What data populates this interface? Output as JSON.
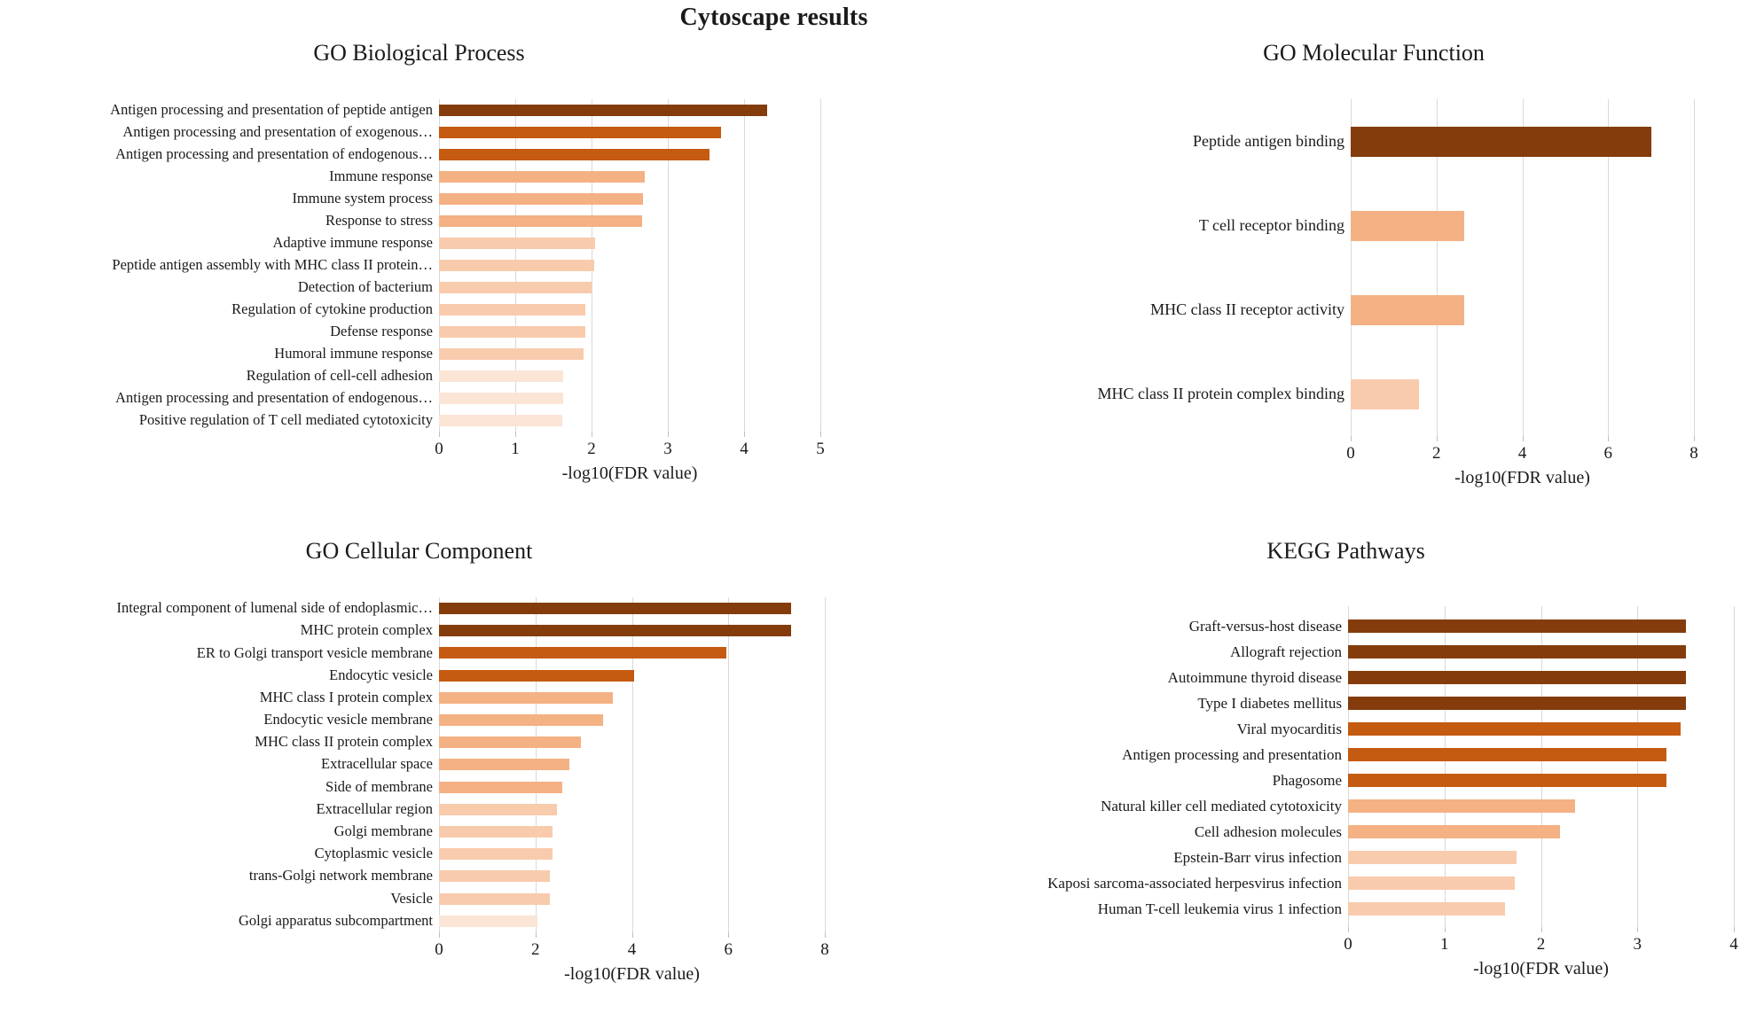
{
  "page": {
    "main_title": "Cytoscape results"
  },
  "palette": {
    "dark_brown": "#843C0C",
    "dark_orange": "#C55A11",
    "medium_orange": "#F4B183",
    "light_orange": "#F8CBAD",
    "pale_orange": "#FBE5D6",
    "gridline": "#D9D9D9",
    "text": "#1A1A1A"
  },
  "chart_data": [
    {
      "id": "go-biological-process",
      "type": "bar",
      "orientation": "horizontal",
      "title": "GO Biological Process",
      "xlabel": "-log10(FDR value)",
      "xlim": [
        0,
        5
      ],
      "xticks": [
        0,
        1,
        2,
        3,
        4,
        5
      ],
      "grid": true,
      "legend": false,
      "categories": [
        "Antigen processing and presentation of peptide antigen",
        "Antigen processing and presentation of exogenous…",
        "Antigen processing and presentation of endogenous…",
        "Immune response",
        "Immune system process",
        "Response to stress",
        "Adaptive immune response",
        "Peptide antigen assembly with MHC class II protein…",
        "Detection of bacterium",
        "Regulation of cytokine production",
        "Defense response",
        "Humoral immune response",
        "Regulation of cell-cell adhesion",
        "Antigen processing and presentation of endogenous…",
        "Positive regulation of T cell mediated cytotoxicity"
      ],
      "values": [
        4.3,
        3.7,
        3.55,
        2.7,
        2.67,
        2.66,
        2.05,
        2.03,
        2.0,
        1.92,
        1.92,
        1.9,
        1.63,
        1.63,
        1.62
      ],
      "bar_colors": [
        "#843C0C",
        "#C55A11",
        "#C55A11",
        "#F4B183",
        "#F4B183",
        "#F4B183",
        "#F8CBAD",
        "#F8CBAD",
        "#F8CBAD",
        "#F8CBAD",
        "#F8CBAD",
        "#F8CBAD",
        "#FBE5D6",
        "#FBE5D6",
        "#FBE5D6"
      ]
    },
    {
      "id": "go-molecular-function",
      "type": "bar",
      "orientation": "horizontal",
      "title": "GO Molecular Function",
      "xlabel": "-log10(FDR value)",
      "xlim": [
        0,
        8
      ],
      "xticks": [
        0,
        2,
        4,
        6,
        8
      ],
      "grid": true,
      "legend": false,
      "categories": [
        "Peptide antigen binding",
        "T cell receptor binding",
        "MHC class II receptor activity",
        "MHC class II protein complex binding"
      ],
      "values": [
        7.0,
        2.65,
        2.65,
        1.6
      ],
      "bar_colors": [
        "#843C0C",
        "#F4B183",
        "#F4B183",
        "#F8CBAD"
      ]
    },
    {
      "id": "go-cellular-component",
      "type": "bar",
      "orientation": "horizontal",
      "title": "GO Cellular Component",
      "xlabel": "-log10(FDR value)",
      "xlim": [
        0,
        8
      ],
      "xticks": [
        0,
        2,
        4,
        6,
        8
      ],
      "grid": true,
      "legend": false,
      "categories": [
        "Integral component of lumenal side of endoplasmic…",
        "MHC protein complex",
        "ER to Golgi transport vesicle membrane",
        "Endocytic vesicle",
        "MHC class I protein complex",
        "Endocytic vesicle membrane",
        "MHC class II protein complex",
        "Extracellular space",
        "Side of membrane",
        "Extracellular region",
        "Golgi membrane",
        "Cytoplasmic vesicle",
        "trans-Golgi network membrane",
        "Vesicle",
        "Golgi apparatus subcompartment"
      ],
      "values": [
        7.3,
        7.3,
        5.95,
        4.05,
        3.6,
        3.4,
        2.95,
        2.7,
        2.55,
        2.45,
        2.35,
        2.35,
        2.3,
        2.3,
        2.05
      ],
      "bar_colors": [
        "#843C0C",
        "#843C0C",
        "#C55A11",
        "#C55A11",
        "#F4B183",
        "#F4B183",
        "#F4B183",
        "#F4B183",
        "#F4B183",
        "#F8CBAD",
        "#F8CBAD",
        "#F8CBAD",
        "#F8CBAD",
        "#F8CBAD",
        "#FBE5D6"
      ]
    },
    {
      "id": "kegg-pathways",
      "type": "bar",
      "orientation": "horizontal",
      "title": "KEGG Pathways",
      "xlabel": "-log10(FDR value)",
      "xlim": [
        0,
        4
      ],
      "xticks": [
        0,
        1,
        2,
        3,
        4
      ],
      "grid": true,
      "legend": false,
      "categories": [
        "Graft-versus-host disease",
        "Allograft rejection",
        "Autoimmune thyroid disease",
        "Type I diabetes mellitus",
        "Viral myocarditis",
        "Antigen processing and presentation",
        "Phagosome",
        "Natural killer cell mediated cytotoxicity",
        "Cell adhesion molecules",
        "Epstein-Barr virus infection",
        "Kaposi sarcoma-associated herpesvirus infection",
        "Human T-cell leukemia virus 1 infection"
      ],
      "values": [
        3.5,
        3.5,
        3.5,
        3.5,
        3.45,
        3.3,
        3.3,
        2.35,
        2.2,
        1.75,
        1.73,
        1.63
      ],
      "bar_colors": [
        "#843C0C",
        "#843C0C",
        "#843C0C",
        "#843C0C",
        "#C55A11",
        "#C55A11",
        "#C55A11",
        "#F4B183",
        "#F4B183",
        "#F8CBAD",
        "#F8CBAD",
        "#F8CBAD"
      ]
    }
  ]
}
